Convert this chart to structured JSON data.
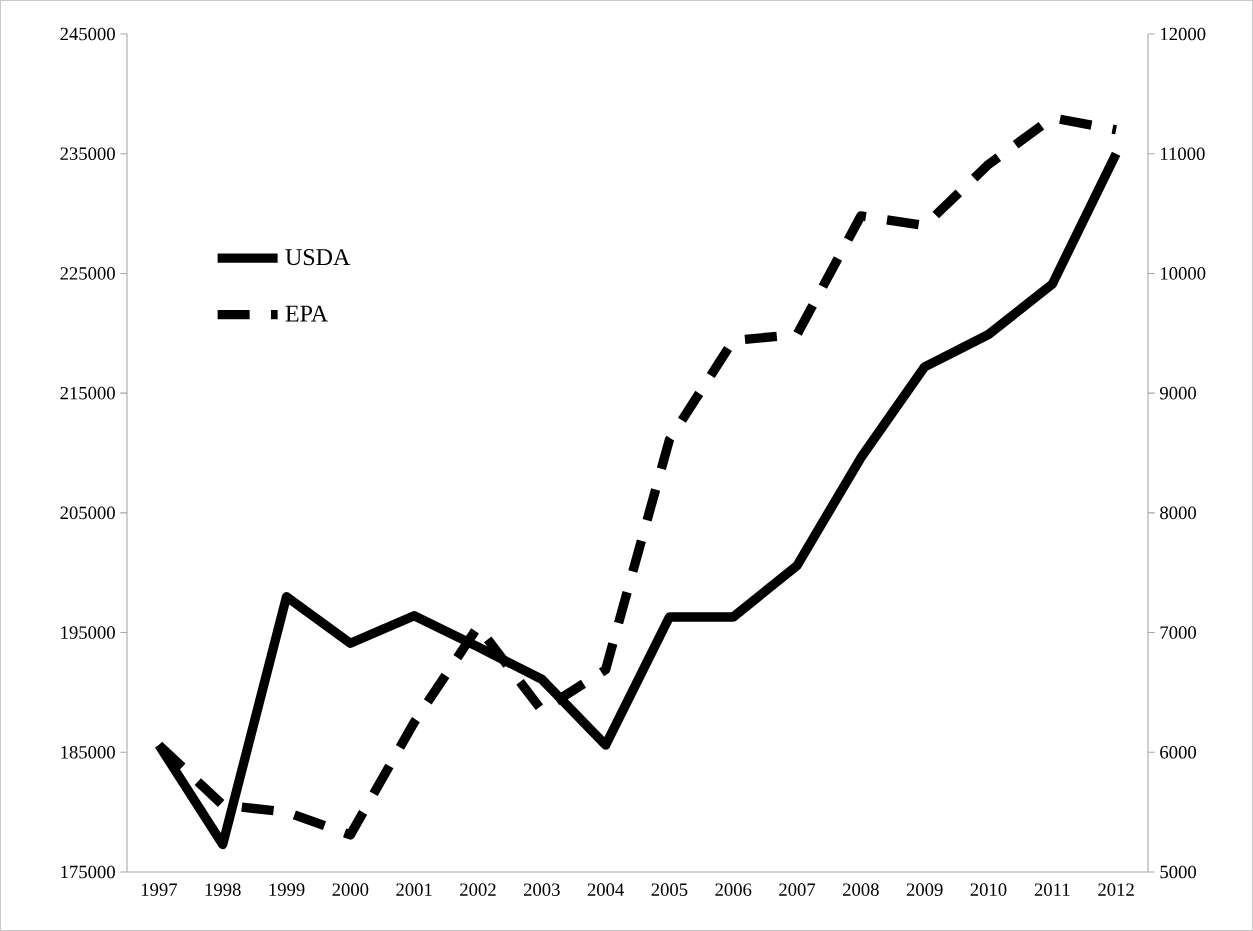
{
  "chart_data": {
    "type": "line",
    "categories": [
      "1997",
      "1998",
      "1999",
      "2000",
      "2001",
      "2002",
      "2003",
      "2004",
      "2005",
      "2006",
      "2007",
      "2008",
      "2009",
      "2010",
      "2011",
      "2012"
    ],
    "series": [
      {
        "name": "USDA",
        "color": "#000000",
        "line_style": "solid",
        "values": [
          185600,
          177300,
          198000,
          194100,
          196400,
          193800,
          191100,
          185600,
          196300,
          196300,
          200600,
          209600,
          217200,
          219900,
          224100,
          235000
        ]
      },
      {
        "name": "EPA",
        "color": "#000000",
        "line_style": "dashed",
        "axis": "y2",
        "values": [
          6060,
          5560,
          5500,
          5310,
          6250,
          7050,
          6350,
          6690,
          8610,
          9440,
          9490,
          10480,
          10400,
          10910,
          11300,
          11200
        ]
      }
    ],
    "ylim": [
      175000,
      245000
    ],
    "yticks": [
      175000,
      185000,
      195000,
      205000,
      215000,
      225000,
      235000,
      245000
    ],
    "y2lim": [
      5000,
      12000
    ],
    "y2ticks": [
      5000,
      6000,
      7000,
      8000,
      9000,
      10000,
      11000,
      12000
    ],
    "grid": false,
    "legend": "top left",
    "marker": "none"
  }
}
